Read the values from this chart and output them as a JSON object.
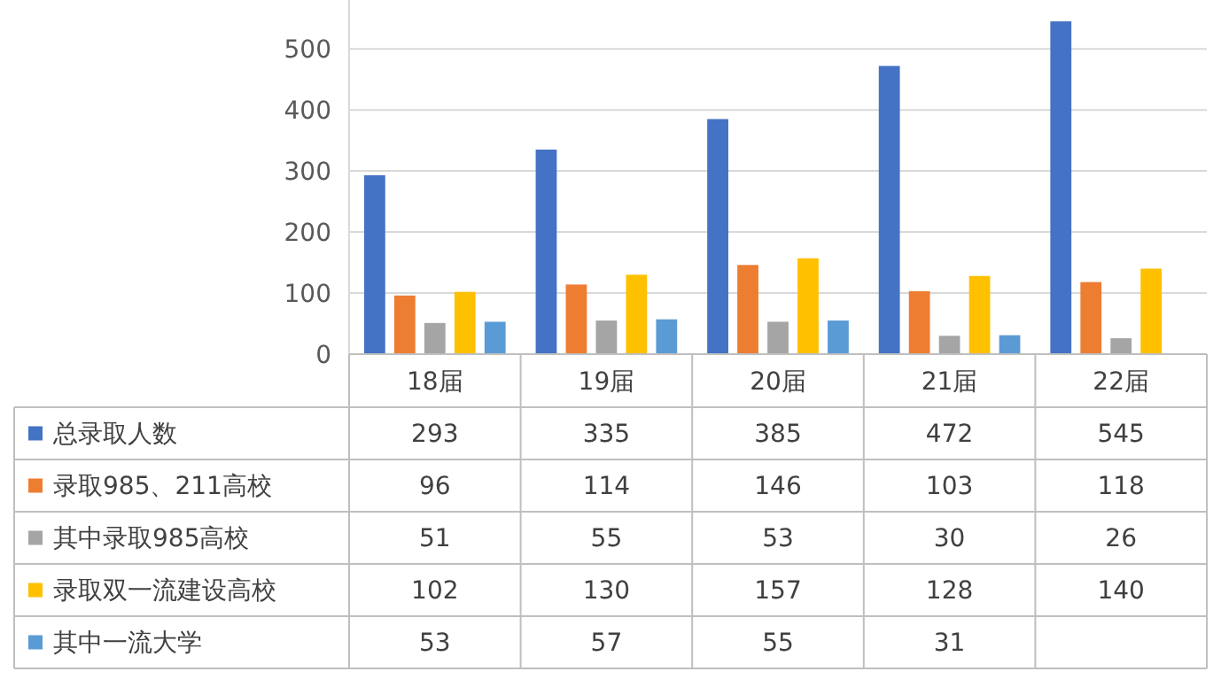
{
  "chart_data": {
    "type": "bar",
    "categories": [
      "18届",
      "19届",
      "20届",
      "21届",
      "22届"
    ],
    "series": [
      {
        "name": "总录取人数",
        "color": "#4472c4",
        "values": [
          293,
          335,
          385,
          472,
          545
        ]
      },
      {
        "name": "录取985、211高校",
        "color": "#ed7d31",
        "values": [
          96,
          114,
          146,
          103,
          118
        ]
      },
      {
        "name": "其中录取985高校",
        "color": "#a5a5a5",
        "values": [
          51,
          55,
          53,
          30,
          26
        ]
      },
      {
        "name": "录取双一流建设高校",
        "color": "#ffc000",
        "values": [
          102,
          130,
          157,
          128,
          140
        ]
      },
      {
        "name": "其中一流大学",
        "color": "#5b9bd5",
        "values": [
          53,
          57,
          55,
          31,
          null
        ]
      }
    ],
    "ylim": [
      0,
      580
    ],
    "yticks": [
      0,
      100,
      200,
      300,
      400,
      500
    ],
    "grid": "y",
    "data_labels": true,
    "legend": "bottom left"
  }
}
